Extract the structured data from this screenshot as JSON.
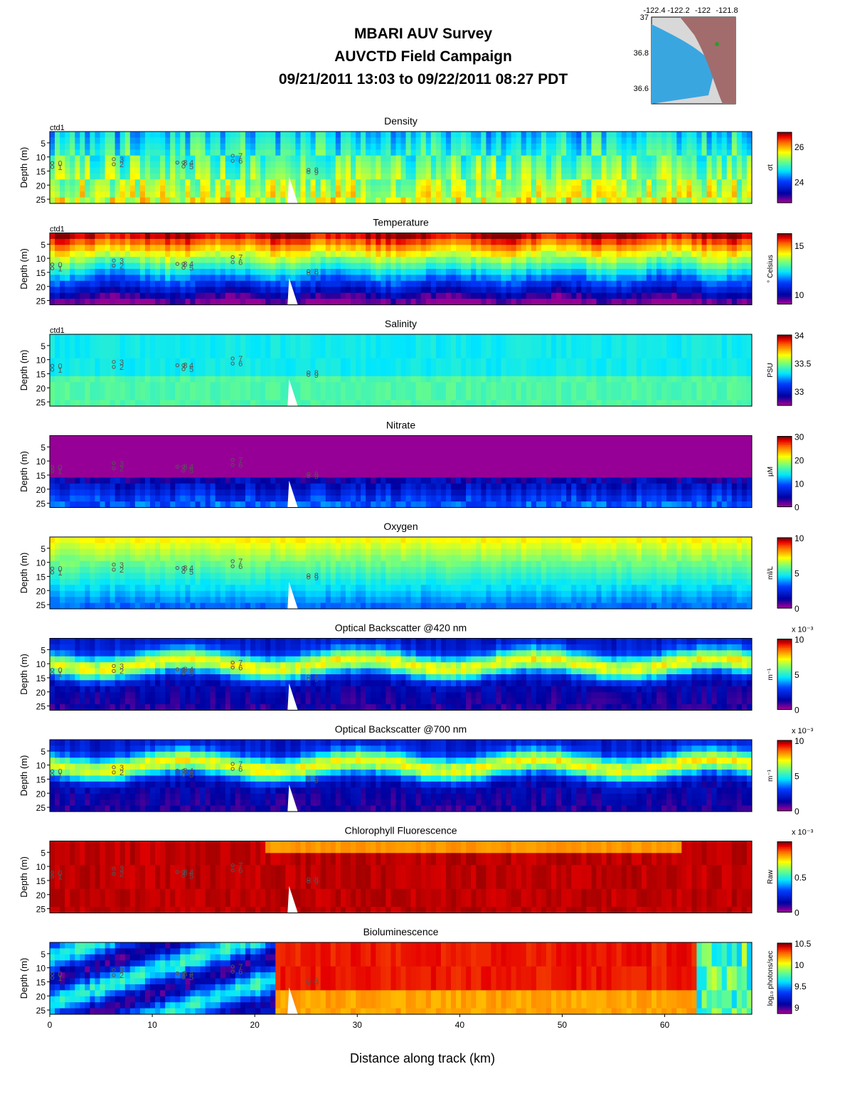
{
  "header": {
    "line1": "MBARI AUV Survey",
    "line2": "AUVCTD Field Campaign",
    "line3": "09/21/2011 13:03  to 09/22/2011 08:27 PDT"
  },
  "inset_map": {
    "lon_ticks": [
      "-122.4",
      "-122.2",
      "-122",
      "-121.8"
    ],
    "lat_ticks": [
      "37",
      "36.8",
      "36.6"
    ]
  },
  "chart_data": {
    "type": "heatmap",
    "xlabel": "Distance along track (km)",
    "xlim": [
      0,
      68.5
    ],
    "x_ticks": [
      "0",
      "10",
      "20",
      "30",
      "40",
      "50",
      "60"
    ],
    "ylabel": "Depth (m)",
    "ylim": [
      26.5,
      1
    ],
    "y_ticks": [
      "5",
      "10",
      "15",
      "20",
      "25"
    ],
    "station_labels": [
      {
        "label": "0",
        "x": 0.8,
        "depth": 13.2
      },
      {
        "label": "1",
        "x": 0.8,
        "depth": 14.6
      },
      {
        "label": "3",
        "x": 6.8,
        "depth": 11.8
      },
      {
        "label": "2",
        "x": 6.8,
        "depth": 13.6
      },
      {
        "label": "8",
        "x": 13.0,
        "depth": 13.0
      },
      {
        "label": "4",
        "x": 13.6,
        "depth": 13.0
      },
      {
        "label": "5",
        "x": 13.6,
        "depth": 14.4
      },
      {
        "label": "7",
        "x": 18.4,
        "depth": 10.6
      },
      {
        "label": "6",
        "x": 18.4,
        "depth": 12.4
      },
      {
        "label": "8",
        "x": 25.8,
        "depth": 15.6
      },
      {
        "label": "9",
        "x": 25.8,
        "depth": 16.4
      }
    ],
    "panels": [
      {
        "title": "Density",
        "tag": "ctd1",
        "cbar_label": "σt",
        "cbar_ticks": [
          "26",
          "24"
        ],
        "cbar_min": 22.8,
        "cbar_max": 26.8,
        "cbar_ticks_pos": [
          26,
          24
        ],
        "cbar_exp": ""
      },
      {
        "title": "Temperature",
        "tag": "ctd1",
        "cbar_label": "° Celsius",
        "cbar_ticks": [
          "15",
          "10"
        ],
        "cbar_min": 9.0,
        "cbar_max": 16.2,
        "cbar_ticks_pos": [
          15,
          10
        ],
        "cbar_exp": ""
      },
      {
        "title": "Salinity",
        "tag": "ctd1",
        "cbar_label": "PSU",
        "cbar_ticks": [
          "34",
          "33.5",
          "33"
        ],
        "cbar_min": 32.75,
        "cbar_max": 34,
        "cbar_ticks_pos": [
          34,
          33.5,
          33
        ],
        "cbar_exp": ""
      },
      {
        "title": "Nitrate",
        "tag": "",
        "cbar_label": "µM",
        "cbar_ticks": [
          "30",
          "20",
          "10",
          "0"
        ],
        "cbar_min": 0,
        "cbar_max": 30,
        "cbar_ticks_pos": [
          30,
          20,
          10,
          0
        ],
        "cbar_exp": ""
      },
      {
        "title": "Oxygen",
        "tag": "",
        "cbar_label": "ml/L",
        "cbar_ticks": [
          "10",
          "5",
          "0"
        ],
        "cbar_min": 0,
        "cbar_max": 10,
        "cbar_ticks_pos": [
          10,
          5,
          0
        ],
        "cbar_exp": ""
      },
      {
        "title": "Optical Backscatter @420 nm",
        "tag": "",
        "cbar_label": "m⁻¹",
        "cbar_ticks": [
          "10",
          "5",
          "0"
        ],
        "cbar_min": 0,
        "cbar_max": 10,
        "cbar_ticks_pos": [
          10,
          5,
          0
        ],
        "cbar_exp": "x 10⁻³"
      },
      {
        "title": "Optical Backscatter @700 nm",
        "tag": "",
        "cbar_label": "m⁻¹",
        "cbar_ticks": [
          "10",
          "5",
          "0"
        ],
        "cbar_min": 0,
        "cbar_max": 10,
        "cbar_ticks_pos": [
          10,
          5,
          0
        ],
        "cbar_exp": "x 10⁻³"
      },
      {
        "title": "Chlorophyll Fluorescence",
        "tag": "",
        "cbar_label": "Raw",
        "cbar_ticks": [
          "0.5",
          "0"
        ],
        "cbar_min": 0,
        "cbar_max": 1,
        "cbar_ticks_pos": [
          0.5,
          0
        ],
        "cbar_exp": "x 10⁻³"
      },
      {
        "title": "Bioluminescence",
        "tag": "",
        "cbar_label": "log₁₀ photons/sec",
        "cbar_ticks": [
          "10.5",
          "10",
          "9.5",
          "9"
        ],
        "cbar_min": 8.85,
        "cbar_max": 10.5,
        "cbar_ticks_pos": [
          10.5,
          10,
          9.5,
          9
        ],
        "cbar_exp": ""
      }
    ]
  }
}
